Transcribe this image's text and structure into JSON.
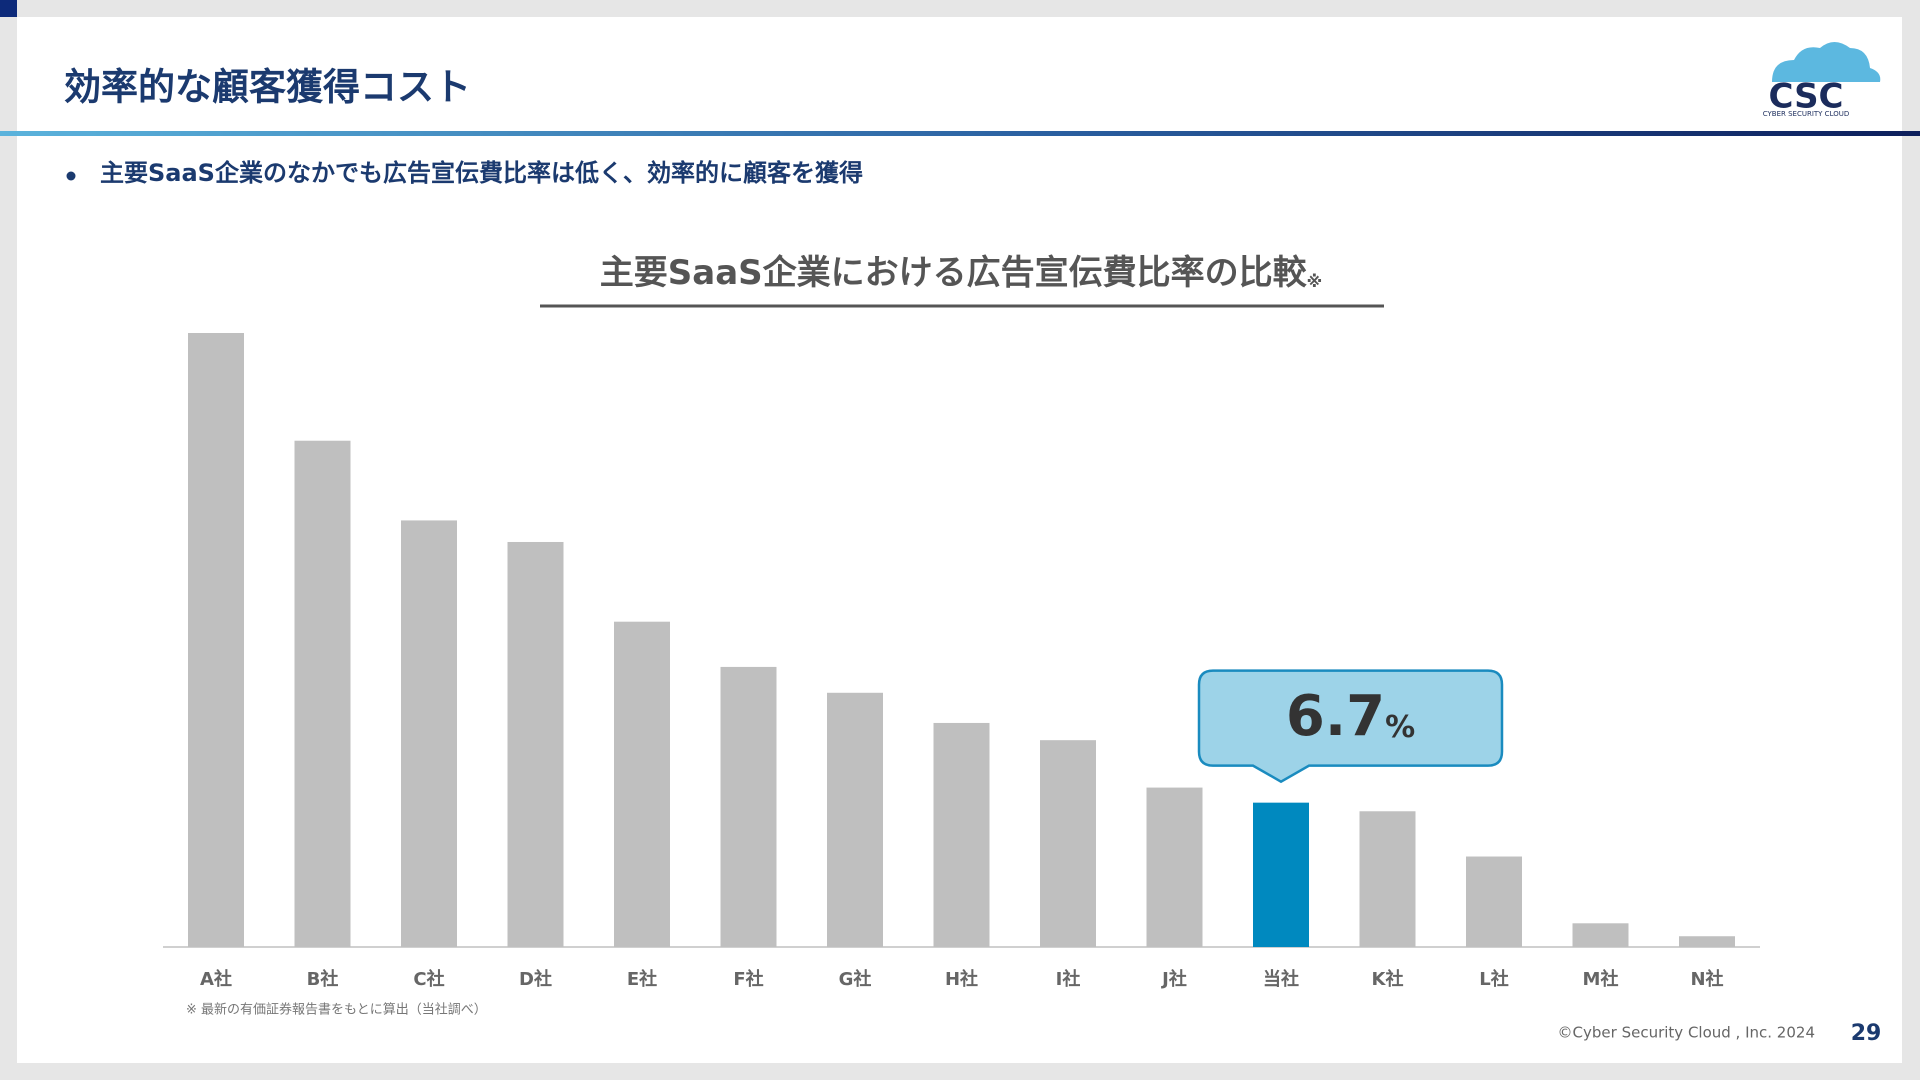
{
  "slide": {
    "title": "効率的な顧客獲得コスト",
    "bullet": "主要SaaS企業のなかでも広告宣伝費比率は低く、効率的に顧客を獲得",
    "footnote": "※ 最新の有価証券報告書をもとに算出（当社調べ）",
    "copyright": "©Cyber Security Cloud , Inc. 2024",
    "page_number": "29",
    "logo": {
      "mark": "CSC",
      "name": "CYBER SECURITY CLOUD"
    }
  },
  "chart_data": {
    "type": "bar",
    "title": "主要SaaS企業における広告宣伝費比率の比較",
    "title_mark": "※",
    "unit": "%",
    "categories": [
      "A社",
      "B社",
      "C社",
      "D社",
      "E社",
      "F社",
      "G社",
      "H社",
      "I社",
      "J社",
      "当社",
      "K社",
      "L社",
      "M社",
      "N社"
    ],
    "values": [
      28.5,
      23.5,
      19.8,
      18.8,
      15.1,
      13.0,
      11.8,
      10.4,
      9.6,
      7.4,
      6.7,
      6.3,
      4.2,
      1.1,
      0.5
    ],
    "colors": [
      "#bfbfbf",
      "#bfbfbf",
      "#bfbfbf",
      "#bfbfbf",
      "#bfbfbf",
      "#bfbfbf",
      "#bfbfbf",
      "#bfbfbf",
      "#bfbfbf",
      "#bfbfbf",
      "#0089bf",
      "#bfbfbf",
      "#bfbfbf",
      "#bfbfbf",
      "#bfbfbf"
    ]
  }
}
